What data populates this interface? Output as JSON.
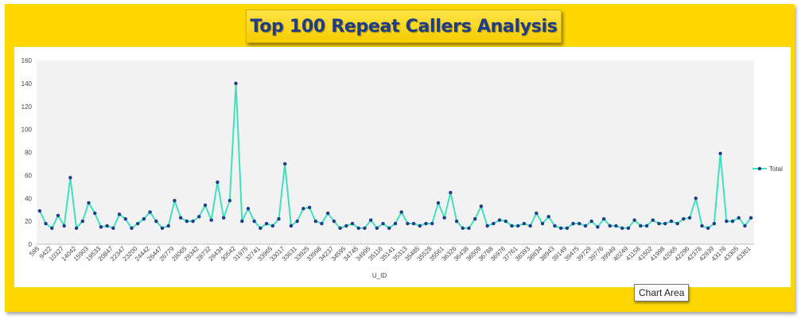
{
  "header": {
    "title": "Top 100 Repeat Callers Analysis"
  },
  "tooltip": {
    "label": "Chart Area"
  },
  "chart_data": {
    "type": "line",
    "title": "Top 100 Repeat Callers Analysis",
    "xlabel": "U_ID",
    "ylabel": "",
    "ylim": [
      0,
      160
    ],
    "yticks": [
      0,
      20,
      40,
      60,
      80,
      100,
      120,
      140,
      160
    ],
    "grid": false,
    "legend_position": "right",
    "line_color": "#40E0C0",
    "marker_color": "#1F3C88",
    "categories": [
      "595",
      "",
      "9422",
      "",
      "10327",
      "",
      "14042",
      "",
      "15903",
      "",
      "19533",
      "",
      "20847",
      "",
      "22347",
      "",
      "23200",
      "",
      "24442",
      "",
      "26447",
      "",
      "26779",
      "",
      "28065",
      "",
      "28342",
      "",
      "28732",
      "",
      "29434",
      "",
      "30542",
      "",
      "31975",
      "",
      "32741",
      "",
      "33965",
      "",
      "33017",
      "",
      "33631",
      "",
      "33925",
      "",
      "33998",
      "",
      "34237",
      "",
      "34595",
      "",
      "34745",
      "",
      "34995",
      "",
      "35116",
      "",
      "35141",
      "",
      "35313",
      "",
      "35485",
      "",
      "35528",
      "",
      "35561",
      "",
      "36326",
      "",
      "36438",
      "",
      "36509",
      "",
      "36788",
      "",
      "36976",
      "",
      "37761",
      "",
      "38393",
      "",
      "38834",
      "",
      "38943",
      "",
      "39149",
      "",
      "39475",
      "",
      "39729",
      "",
      "39776",
      "",
      "39949",
      "",
      "40249",
      "",
      "41158",
      "",
      "41502",
      "",
      "41998",
      "",
      "42065",
      "",
      "42296",
      "",
      "42378",
      "",
      "42939",
      "",
      "43176",
      "",
      "43305",
      "",
      "43361"
    ],
    "series": [
      {
        "name": "Total",
        "values": [
          29,
          18,
          14,
          25,
          16,
          58,
          14,
          20,
          36,
          27,
          15,
          16,
          14,
          26,
          22,
          14,
          18,
          22,
          28,
          20,
          14,
          16,
          38,
          23,
          20,
          20,
          24,
          34,
          21,
          54,
          23,
          38,
          140,
          20,
          31,
          20,
          14,
          18,
          16,
          22,
          70,
          16,
          20,
          31,
          32,
          20,
          18,
          27,
          20,
          14,
          16,
          18,
          14,
          14,
          21,
          14,
          18,
          14,
          18,
          28,
          18,
          18,
          16,
          18,
          18,
          36,
          23,
          45,
          20,
          14,
          14,
          22,
          33,
          16,
          18,
          21,
          20,
          16,
          16,
          18,
          16,
          27,
          18,
          24,
          16,
          14,
          14,
          18,
          18,
          16,
          20,
          15,
          22,
          16,
          16,
          14,
          14,
          21,
          16,
          16,
          21,
          18,
          18,
          20,
          18,
          22,
          23,
          40,
          16,
          14,
          18,
          79,
          20,
          20,
          23,
          16,
          23
        ]
      }
    ]
  }
}
